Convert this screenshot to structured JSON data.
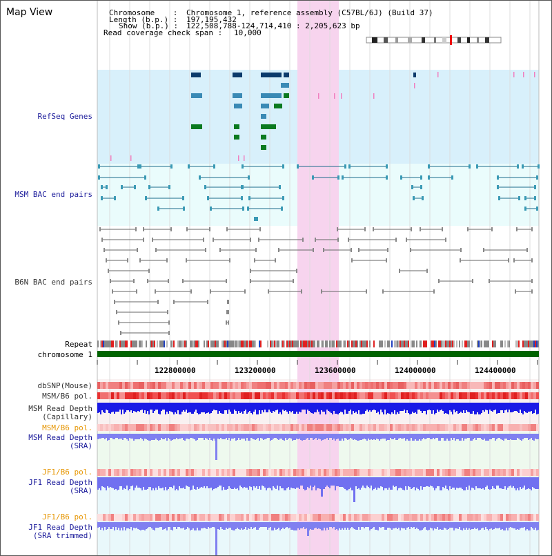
{
  "view": {
    "title": "Map View"
  },
  "info": {
    "chromosome_key": "Chromosome    :",
    "chromosome_value": "Chromosome 1, reference assembly (C57BL/6J) (Build 37)",
    "length_key": "Length (b.p.) :",
    "length_value": "197,195,432",
    "show_key": "Show (b.p.) :",
    "show_value": "122,508,788-124,714,410 : 2,205,623 bp",
    "span_key": "Read coverage check span :",
    "span_value": "10,000"
  },
  "tracks": {
    "refseq": "RefSeq Genes",
    "msm_bac": "MSM BAC end pairs",
    "b6n_bac": "B6N BAC end pairs",
    "repeat": "Repeat",
    "chromosome": "chromosome 1",
    "dbsnp": "dbSNP(Mouse)",
    "msm_b6_pol_1": "MSM/B6 pol.",
    "msm_depth_cap_1": "MSM Read Depth",
    "msm_depth_cap_2": "(Capillary)",
    "msm_b6_pol_2": "MSM/B6 pol.",
    "msm_depth_sra_1": "MSM Read Depth",
    "msm_depth_sra_2": "(SRA)",
    "jf1_b6_pol_1": "JF1/B6 pol.",
    "jf1_depth_sra_1": "JF1 Read Depth",
    "jf1_depth_sra_2": "(SRA)",
    "jf1_b6_pol_2": "JF1/B6 pol.",
    "jf1_depth_trim_1": "JF1 Read Depth",
    "jf1_depth_trim_2": "(SRA trimmed)"
  },
  "axis": {
    "ticks": [
      "122800000",
      "123200000",
      "123600000",
      "124000000",
      "124400000"
    ]
  },
  "colors": {
    "refseq_bg": "#d8f0fb",
    "bac_bg": "#e9fbfb",
    "highlight": "#f7d4ee",
    "chromosome_bar": "#006400",
    "read_depth": "#2020e0",
    "snp": "#e05050"
  }
}
